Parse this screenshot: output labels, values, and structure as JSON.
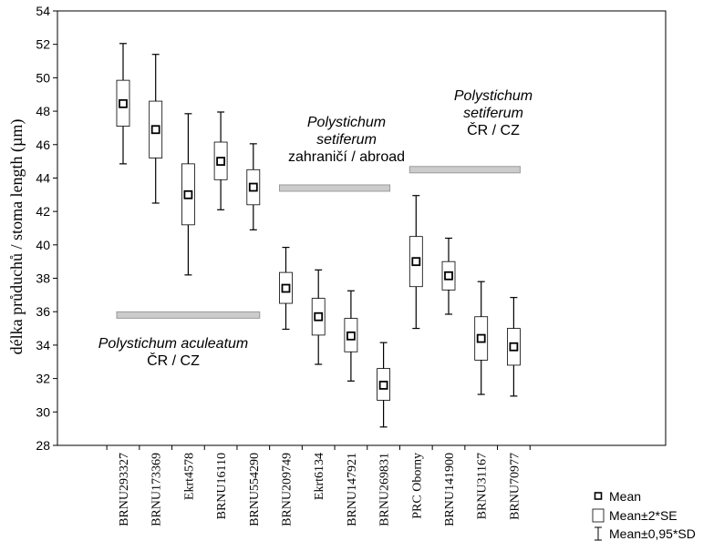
{
  "chart_data": {
    "type": "box",
    "title": "",
    "xlabel": "",
    "ylabel": "délka průduchů / stoma length (µm)",
    "ylim": [
      28,
      54
    ],
    "yticks": [
      28,
      30,
      32,
      34,
      36,
      38,
      40,
      42,
      44,
      46,
      48,
      50,
      52,
      54
    ],
    "grid": false,
    "legend_position": "bottom-right",
    "categories": [
      "BRNU293327",
      "BRNU173369",
      "Ekrt4578",
      "BRNU16110",
      "BRNU554290",
      "BRNU209749",
      "Ekrt6134",
      "BRNU147921",
      "BRNU269831",
      "PRC Oborny",
      "BRNU141900",
      "BRNU31167",
      "BRNU70977"
    ],
    "series": [
      {
        "name": "Mean",
        "values": [
          48.45,
          46.9,
          43.0,
          45.0,
          43.45,
          37.4,
          35.7,
          34.55,
          31.6,
          39.0,
          38.15,
          34.4,
          33.9
        ]
      },
      {
        "name": "Mean±2*SE",
        "low": [
          47.1,
          45.2,
          41.2,
          43.9,
          42.4,
          36.5,
          34.6,
          33.6,
          30.7,
          37.5,
          37.3,
          33.1,
          32.8
        ],
        "high": [
          49.85,
          48.6,
          44.85,
          46.15,
          44.5,
          38.35,
          36.8,
          35.6,
          32.6,
          40.5,
          39.0,
          35.7,
          35.0
        ]
      },
      {
        "name": "Mean±0,95*SD",
        "low": [
          44.85,
          42.5,
          38.2,
          42.1,
          40.9,
          34.95,
          32.85,
          31.85,
          29.1,
          35.0,
          35.85,
          31.05,
          30.95
        ],
        "high": [
          52.05,
          51.4,
          47.85,
          47.95,
          46.05,
          39.85,
          38.5,
          37.25,
          34.15,
          42.95,
          40.4,
          37.8,
          36.85
        ]
      }
    ],
    "groups": [
      {
        "lines": [
          {
            "text": "Polystichum aculeatum",
            "italic": true
          },
          {
            "text": "ČR / CZ",
            "italic": false
          }
        ],
        "from": 0,
        "to": 4,
        "y": 35.8
      },
      {
        "lines": [
          {
            "text": "Polystichum",
            "italic": true
          },
          {
            "text": "setiferum",
            "italic": true
          },
          {
            "text": "zahraničí / abroad",
            "italic": false
          }
        ],
        "from": 5,
        "to": 8,
        "y": 43.4
      },
      {
        "lines": [
          {
            "text": "Polystichum",
            "italic": true
          },
          {
            "text": "setiferum",
            "italic": true
          },
          {
            "text": "ČR / CZ",
            "italic": false
          }
        ],
        "from": 9,
        "to": 12,
        "y": 44.5
      }
    ],
    "legend": [
      {
        "symbol": "square-marker",
        "text": "Mean"
      },
      {
        "symbol": "box",
        "text": "Mean±2*SE"
      },
      {
        "symbol": "whisker",
        "text": "Mean±0,95*SD"
      }
    ],
    "colors": {
      "box_fill": "#ffffff",
      "stroke": "#000000",
      "group_bar": "#cccccc",
      "group_bar_stroke": "#9a9a9a"
    }
  }
}
